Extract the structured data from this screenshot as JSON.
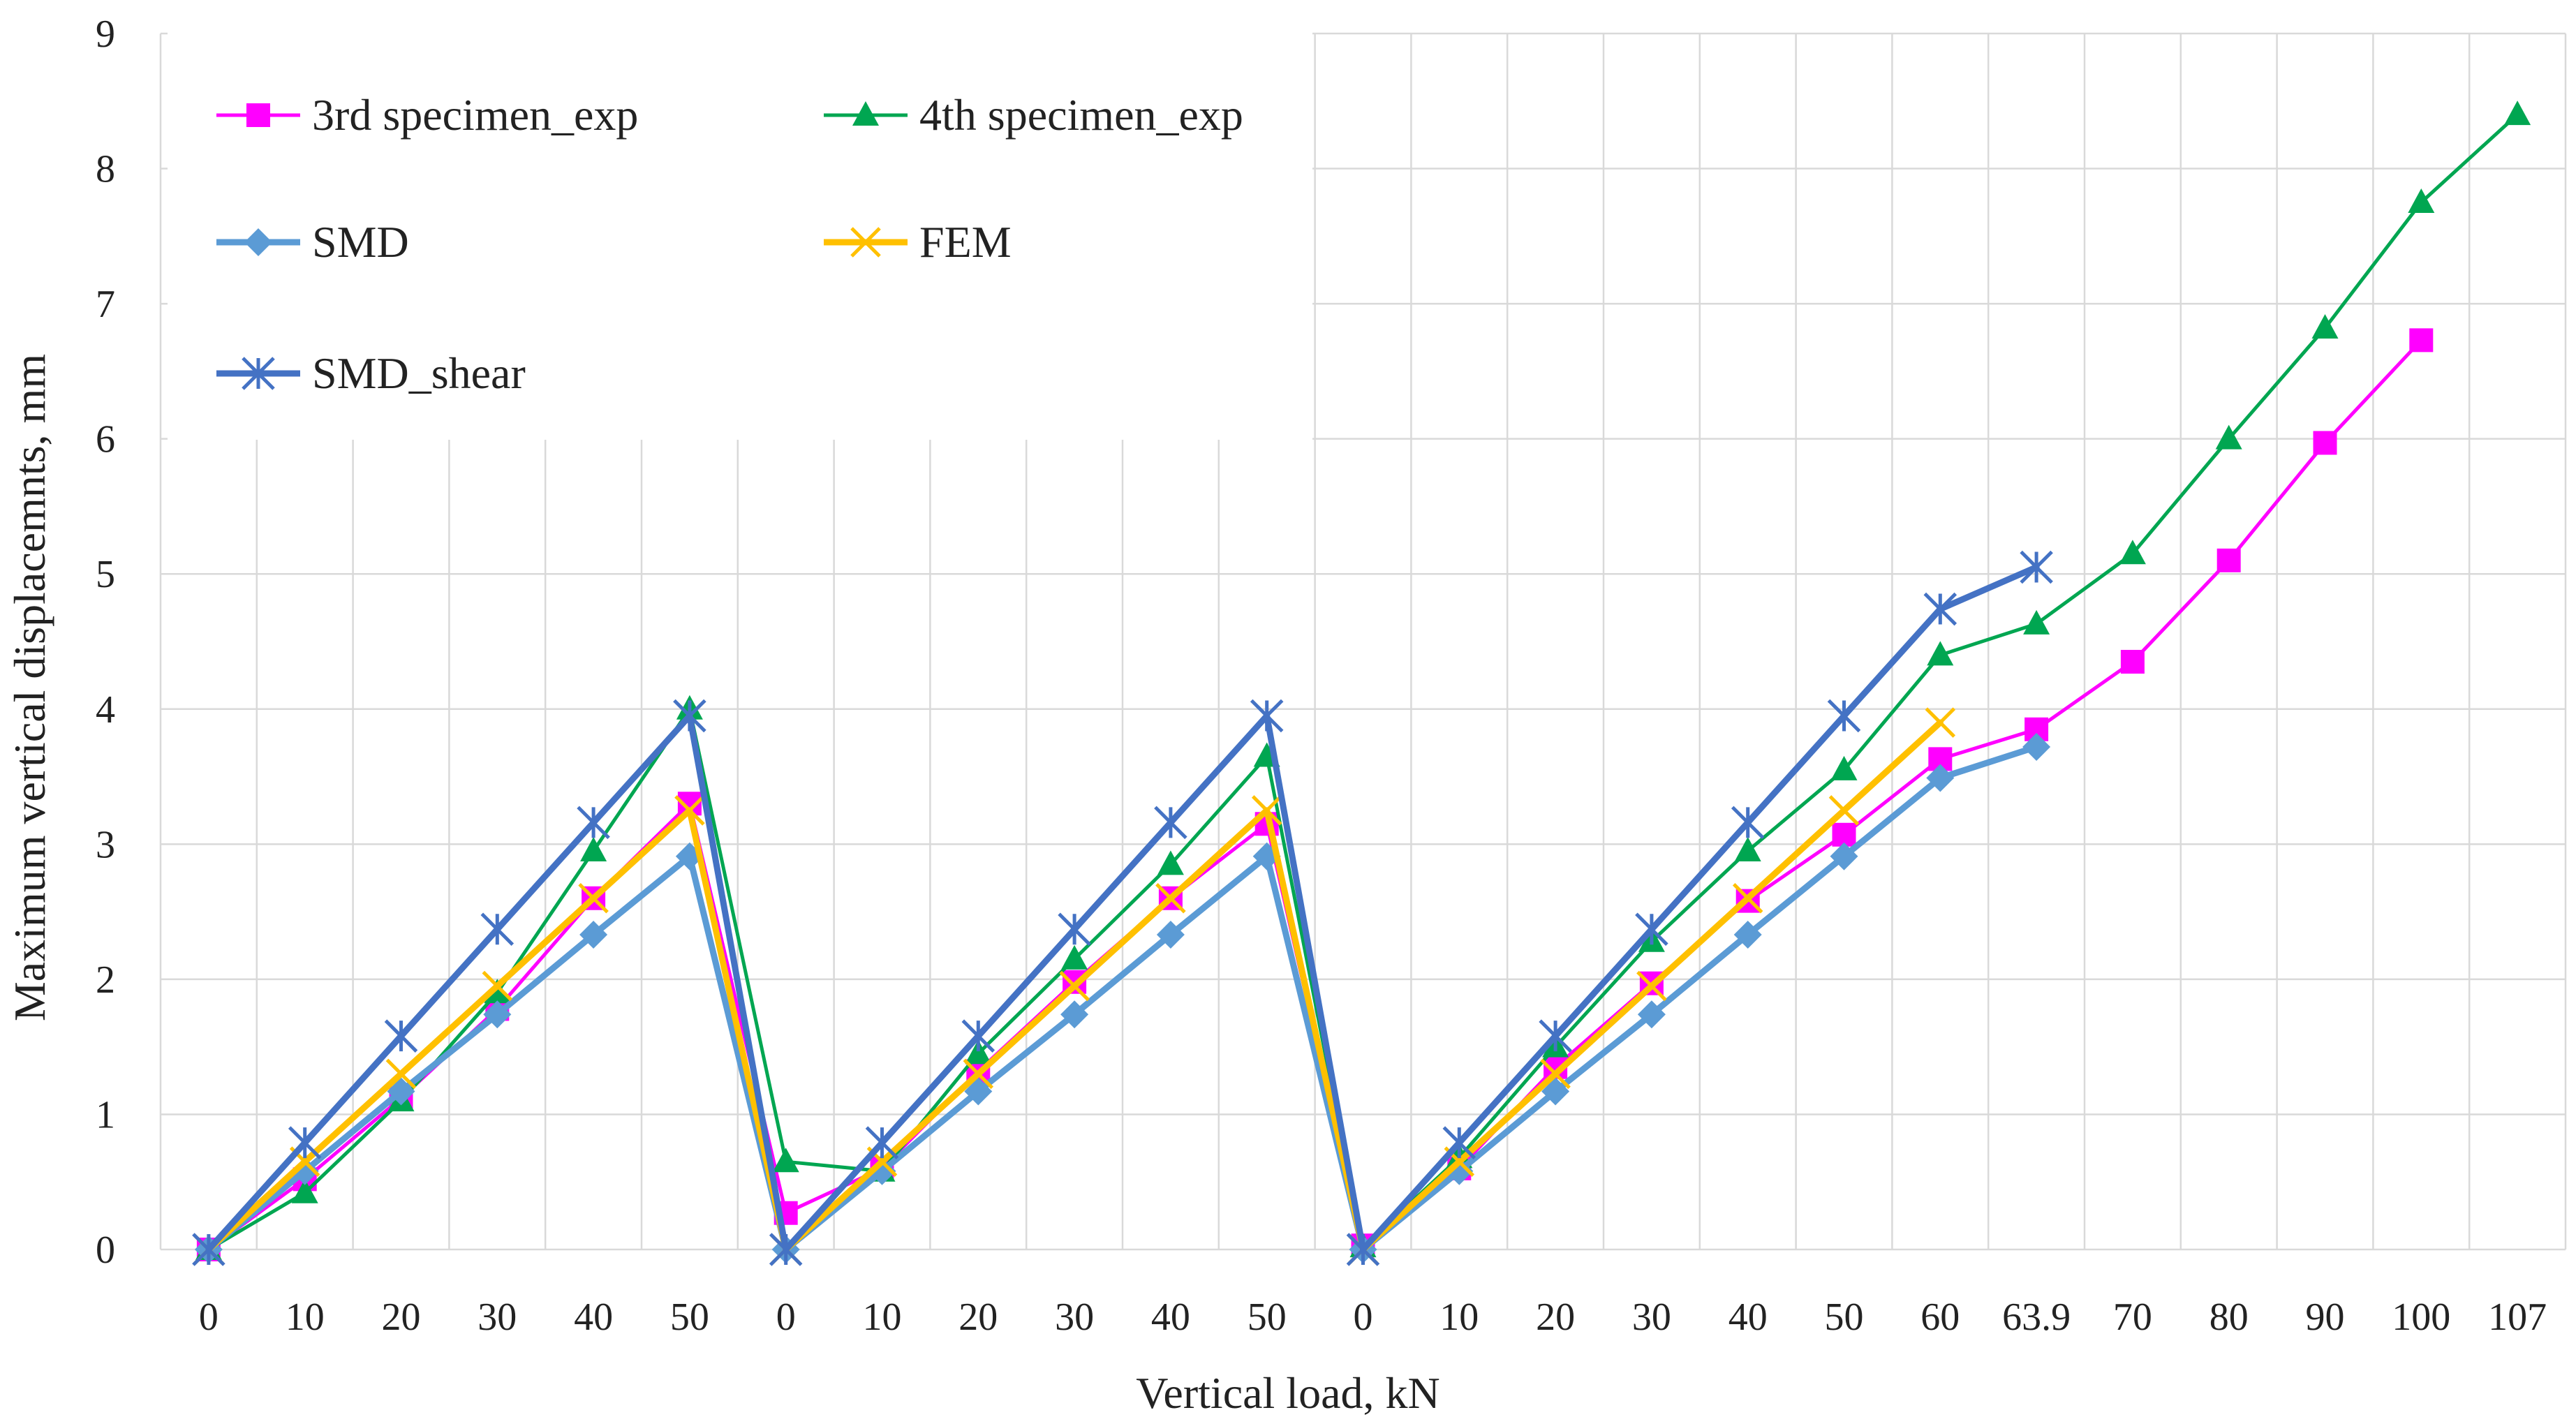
{
  "chart_data": {
    "type": "line",
    "title": "",
    "xlabel": "Vertical load, kN",
    "ylabel": "Maximum vertical displacemnts, mm",
    "categories": [
      "0",
      "10",
      "20",
      "30",
      "40",
      "50",
      "0",
      "10",
      "20",
      "30",
      "40",
      "50",
      "0",
      "10",
      "20",
      "30",
      "40",
      "50",
      "60",
      "63.9",
      "70",
      "80",
      "90",
      "100",
      "107"
    ],
    "ylim": [
      0,
      9
    ],
    "yticks": [
      "0",
      "1",
      "2",
      "3",
      "4",
      "5",
      "6",
      "7",
      "8",
      "9"
    ],
    "grid": true,
    "legend_position": "top-left",
    "series": [
      {
        "name": "3rd specimen_exp",
        "color": "#ff00ff",
        "marker": "square",
        "line_width": 5,
        "values": [
          0,
          0.52,
          1.12,
          1.78,
          2.6,
          3.3,
          0.27,
          0.6,
          1.32,
          1.98,
          2.6,
          3.15,
          0.03,
          0.6,
          1.35,
          1.97,
          2.58,
          3.07,
          3.63,
          3.85,
          4.35,
          5.1,
          5.97,
          6.73,
          null
        ]
      },
      {
        "name": "4th specimen_exp",
        "color": "#00a651",
        "marker": "triangle",
        "line_width": 5,
        "values": [
          0,
          0.42,
          1.1,
          1.9,
          2.95,
          4.0,
          0.65,
          0.58,
          1.45,
          2.15,
          2.85,
          3.65,
          0.02,
          0.68,
          1.5,
          2.28,
          2.95,
          3.55,
          4.4,
          4.63,
          5.15,
          6.0,
          6.82,
          7.75,
          8.4
        ]
      },
      {
        "name": "SMD",
        "color": "#5b9bd5",
        "marker": "diamond",
        "line_width": 9,
        "values": [
          0,
          0.58,
          1.17,
          1.74,
          2.33,
          2.91,
          0,
          0.58,
          1.17,
          1.74,
          2.33,
          2.91,
          0,
          0.58,
          1.17,
          1.74,
          2.33,
          2.91,
          3.49,
          3.72,
          null,
          null,
          null,
          null,
          null
        ]
      },
      {
        "name": "FEM",
        "color": "#ffc000",
        "marker": "x",
        "line_width": 9,
        "values": [
          0,
          0.65,
          1.3,
          1.95,
          2.6,
          3.25,
          0,
          0.65,
          1.3,
          1.95,
          2.6,
          3.25,
          0,
          0.65,
          1.3,
          1.95,
          2.6,
          3.25,
          3.9,
          null,
          null,
          null,
          null,
          null,
          null
        ]
      },
      {
        "name": "SMD_shear",
        "color": "#4472c4",
        "marker": "star",
        "line_width": 9,
        "values": [
          0,
          0.79,
          1.58,
          2.37,
          3.16,
          3.95,
          0,
          0.79,
          1.58,
          2.37,
          3.16,
          3.95,
          0,
          0.79,
          1.58,
          2.37,
          3.16,
          3.95,
          4.74,
          5.05,
          null,
          null,
          null,
          null,
          null
        ]
      }
    ]
  }
}
